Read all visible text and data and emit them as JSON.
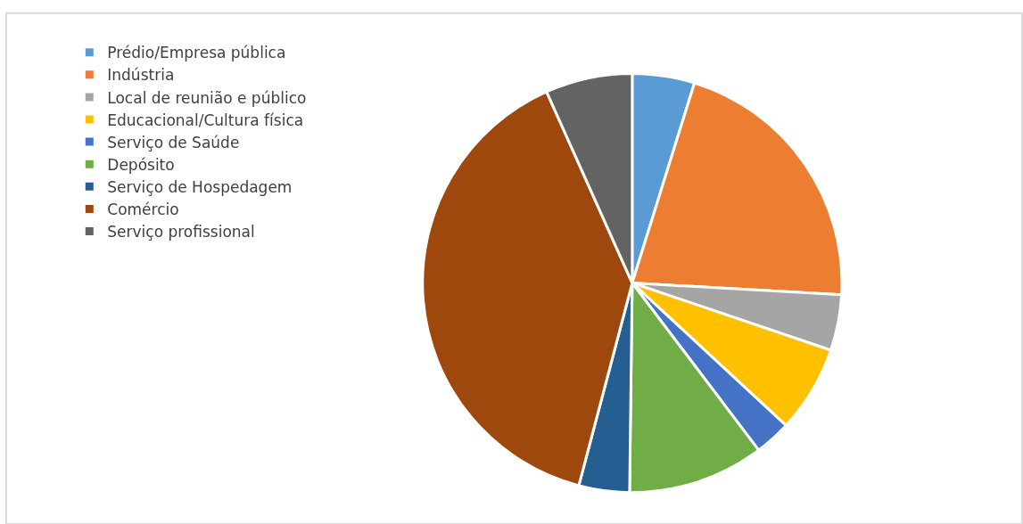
{
  "chart_data": {
    "type": "pie",
    "categories": [
      "Prédio/Empresa pública",
      "Indústria",
      "Local de reunião e público",
      "Educacional/Cultura física",
      "Serviço de Saúde",
      "Depósito",
      "Serviço de Hospedagem",
      "Comércio",
      "Serviço profissional"
    ],
    "values": [
      4.8,
      21.1,
      4.3,
      6.7,
      2.8,
      10.5,
      3.9,
      39.2,
      6.7
    ],
    "colors": [
      "#5b9bd5",
      "#ed7d31",
      "#a5a5a5",
      "#ffc000",
      "#4472c4",
      "#70ad47",
      "#255e91",
      "#9e480e",
      "#636363"
    ],
    "legend": "left"
  }
}
